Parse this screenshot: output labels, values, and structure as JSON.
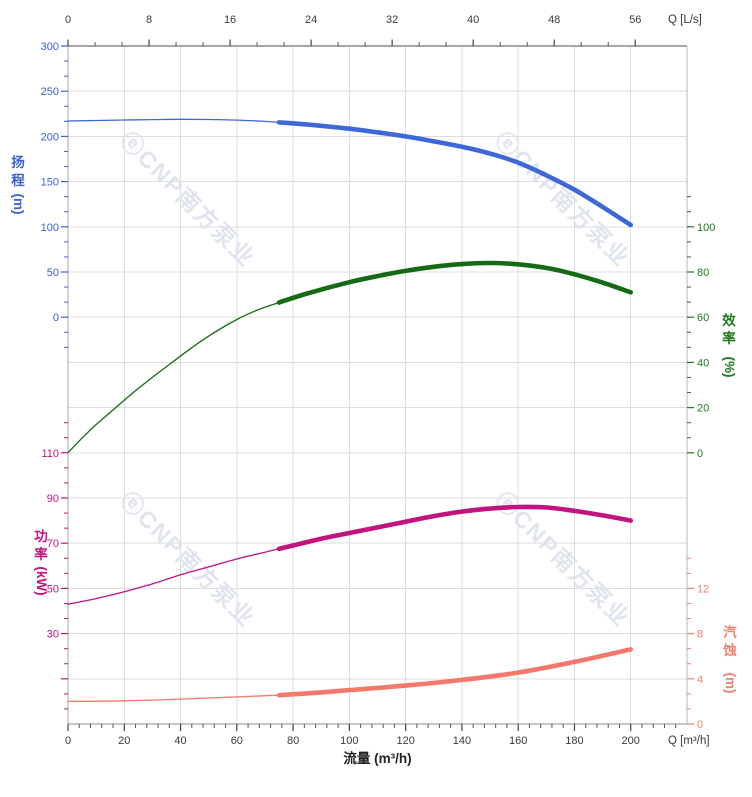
{
  "watermark": {
    "text": "ⓔCNP南方泵业",
    "color": "#e0e4ee"
  },
  "chart_data": {
    "type": "line",
    "x_bottom": {
      "title": "流量 (m³/h)",
      "unit_label": "Q [m³/h]",
      "ticks": [
        0,
        20,
        40,
        60,
        80,
        100,
        120,
        140,
        160,
        180,
        200
      ],
      "minor_step": 4,
      "range": [
        0,
        220
      ],
      "color": "#3a3a3a"
    },
    "x_top": {
      "unit_label": "Q [L/s]",
      "ticks": [
        0,
        8,
        16,
        24,
        32,
        40,
        48,
        56
      ],
      "minors_between_majors": 2,
      "m3h_per_lps": 3.6,
      "color": "#3a3a3a"
    },
    "axes": {
      "head": {
        "title_chars": [
          "扬",
          "程"
        ],
        "title_unit": "(m)",
        "side": "left",
        "ticks": [
          300,
          250,
          200,
          150,
          100,
          50,
          0
        ],
        "extra_minor_ticks": [
          -16.67,
          -33.33
        ],
        "unlabeled_major_ticks": [],
        "color": "#3b61d1"
      },
      "power": {
        "title_chars": [
          "功",
          "率"
        ],
        "title_unit": "(kW)",
        "side": "left",
        "ticks": [
          110,
          90,
          70,
          50,
          30
        ],
        "extra_minor_ticks": [
          116.67,
          123.33,
          23.33,
          16.67,
          3.33,
          -3.33
        ],
        "unlabeled_major_ticks": [
          10
        ],
        "color": "#c2147e"
      },
      "eff": {
        "title_chars": [
          "效",
          "率"
        ],
        "title_unit": "(%)",
        "side": "right",
        "ticks": [
          100,
          80,
          60,
          40,
          20,
          0
        ],
        "extra_minor_ticks": [
          106.67,
          113.33
        ],
        "unlabeled_major_ticks": [],
        "color": "#1e7a1e"
      },
      "npsh": {
        "title_chars": [
          "汽",
          "蚀"
        ],
        "title_unit": "(m)",
        "side": "right",
        "ticks": [
          12,
          8,
          4,
          0
        ],
        "extra_minor_ticks": [
          13.33,
          14.67
        ],
        "unlabeled_major_ticks": [],
        "color": "#f47e71"
      }
    },
    "series": [
      {
        "id": "head",
        "axis": "head",
        "color": "#3e68d8",
        "points_thin": [
          [
            0,
            217
          ],
          [
            10,
            217.6
          ],
          [
            20,
            218.1
          ],
          [
            30,
            218.6
          ],
          [
            40,
            218.9
          ],
          [
            50,
            218.7
          ],
          [
            60,
            218
          ],
          [
            70,
            216.6
          ],
          [
            75,
            215.5
          ]
        ],
        "points_thick": [
          [
            75,
            215.5
          ],
          [
            85,
            213.2
          ],
          [
            100,
            208.5
          ],
          [
            110,
            204.5
          ],
          [
            120,
            200
          ],
          [
            130,
            194.5
          ],
          [
            140,
            188.5
          ],
          [
            150,
            181
          ],
          [
            160,
            171
          ],
          [
            170,
            157
          ],
          [
            180,
            141
          ],
          [
            190,
            122
          ],
          [
            200,
            102
          ]
        ]
      },
      {
        "id": "eff",
        "axis": "eff",
        "color": "#156b15",
        "points_thin": [
          [
            0,
            0
          ],
          [
            5,
            6.5
          ],
          [
            10,
            12.5
          ],
          [
            17,
            20
          ],
          [
            25,
            28.5
          ],
          [
            37,
            40
          ],
          [
            48,
            50
          ],
          [
            60,
            59
          ],
          [
            68,
            63.5
          ],
          [
            75,
            66.5
          ]
        ],
        "points_thick": [
          [
            75,
            66.5
          ],
          [
            85,
            70.5
          ],
          [
            100,
            75.5
          ],
          [
            110,
            78.2
          ],
          [
            120,
            80.5
          ],
          [
            130,
            82.3
          ],
          [
            140,
            83.5
          ],
          [
            150,
            84
          ],
          [
            160,
            83.4
          ],
          [
            170,
            81.8
          ],
          [
            180,
            79
          ],
          [
            190,
            75.3
          ],
          [
            200,
            71
          ]
        ]
      },
      {
        "id": "power",
        "axis": "power",
        "color": "#c2147e",
        "points_thin": [
          [
            0,
            43
          ],
          [
            10,
            45.5
          ],
          [
            20,
            48.5
          ],
          [
            30,
            52
          ],
          [
            40,
            56
          ],
          [
            50,
            59.5
          ],
          [
            60,
            63
          ],
          [
            70,
            66
          ],
          [
            75,
            67.5
          ]
        ],
        "points_thick": [
          [
            75,
            67.5
          ],
          [
            90,
            72
          ],
          [
            100,
            74.5
          ],
          [
            110,
            77
          ],
          [
            120,
            79.5
          ],
          [
            130,
            82
          ],
          [
            140,
            84
          ],
          [
            150,
            85.3
          ],
          [
            160,
            86
          ],
          [
            170,
            85.8
          ],
          [
            180,
            84.3
          ],
          [
            190,
            82.3
          ],
          [
            200,
            80
          ]
        ]
      },
      {
        "id": "npsh",
        "axis": "npsh",
        "color": "#f4796c",
        "points_thin": [
          [
            0,
            2
          ],
          [
            20,
            2.05
          ],
          [
            40,
            2.2
          ],
          [
            60,
            2.4
          ],
          [
            75,
            2.55
          ]
        ],
        "points_thick": [
          [
            75,
            2.55
          ],
          [
            90,
            2.8
          ],
          [
            100,
            3
          ],
          [
            120,
            3.4
          ],
          [
            140,
            3.9
          ],
          [
            160,
            4.55
          ],
          [
            180,
            5.5
          ],
          [
            200,
            6.6
          ]
        ]
      }
    ]
  }
}
